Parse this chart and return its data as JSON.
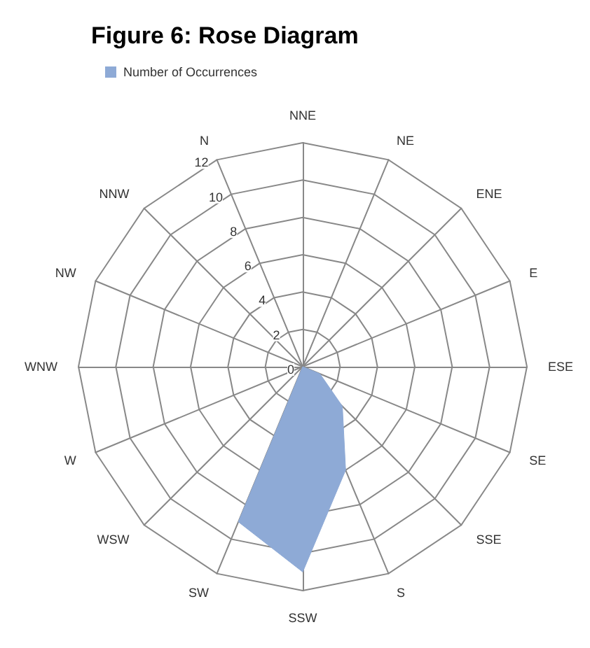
{
  "chart_data": {
    "type": "radar",
    "title": "Figure 6: Rose Diagram",
    "categories": [
      "N",
      "NNE",
      "NE",
      "ENE",
      "E",
      "ESE",
      "SE",
      "SSE",
      "S",
      "SSW",
      "SW",
      "WSW",
      "W",
      "WNW",
      "NW",
      "NNW"
    ],
    "series": [
      {
        "name": "Number of Occurrences",
        "color": "#8eaad6",
        "values": [
          0,
          0,
          0,
          0,
          0,
          0,
          1,
          3,
          6,
          11,
          9,
          0,
          0,
          0,
          0,
          0
        ]
      }
    ],
    "ylim": [
      0,
      12
    ],
    "yticks": [
      0,
      2,
      4,
      6,
      8,
      10,
      12
    ],
    "legend": "top left",
    "marker": "none"
  }
}
